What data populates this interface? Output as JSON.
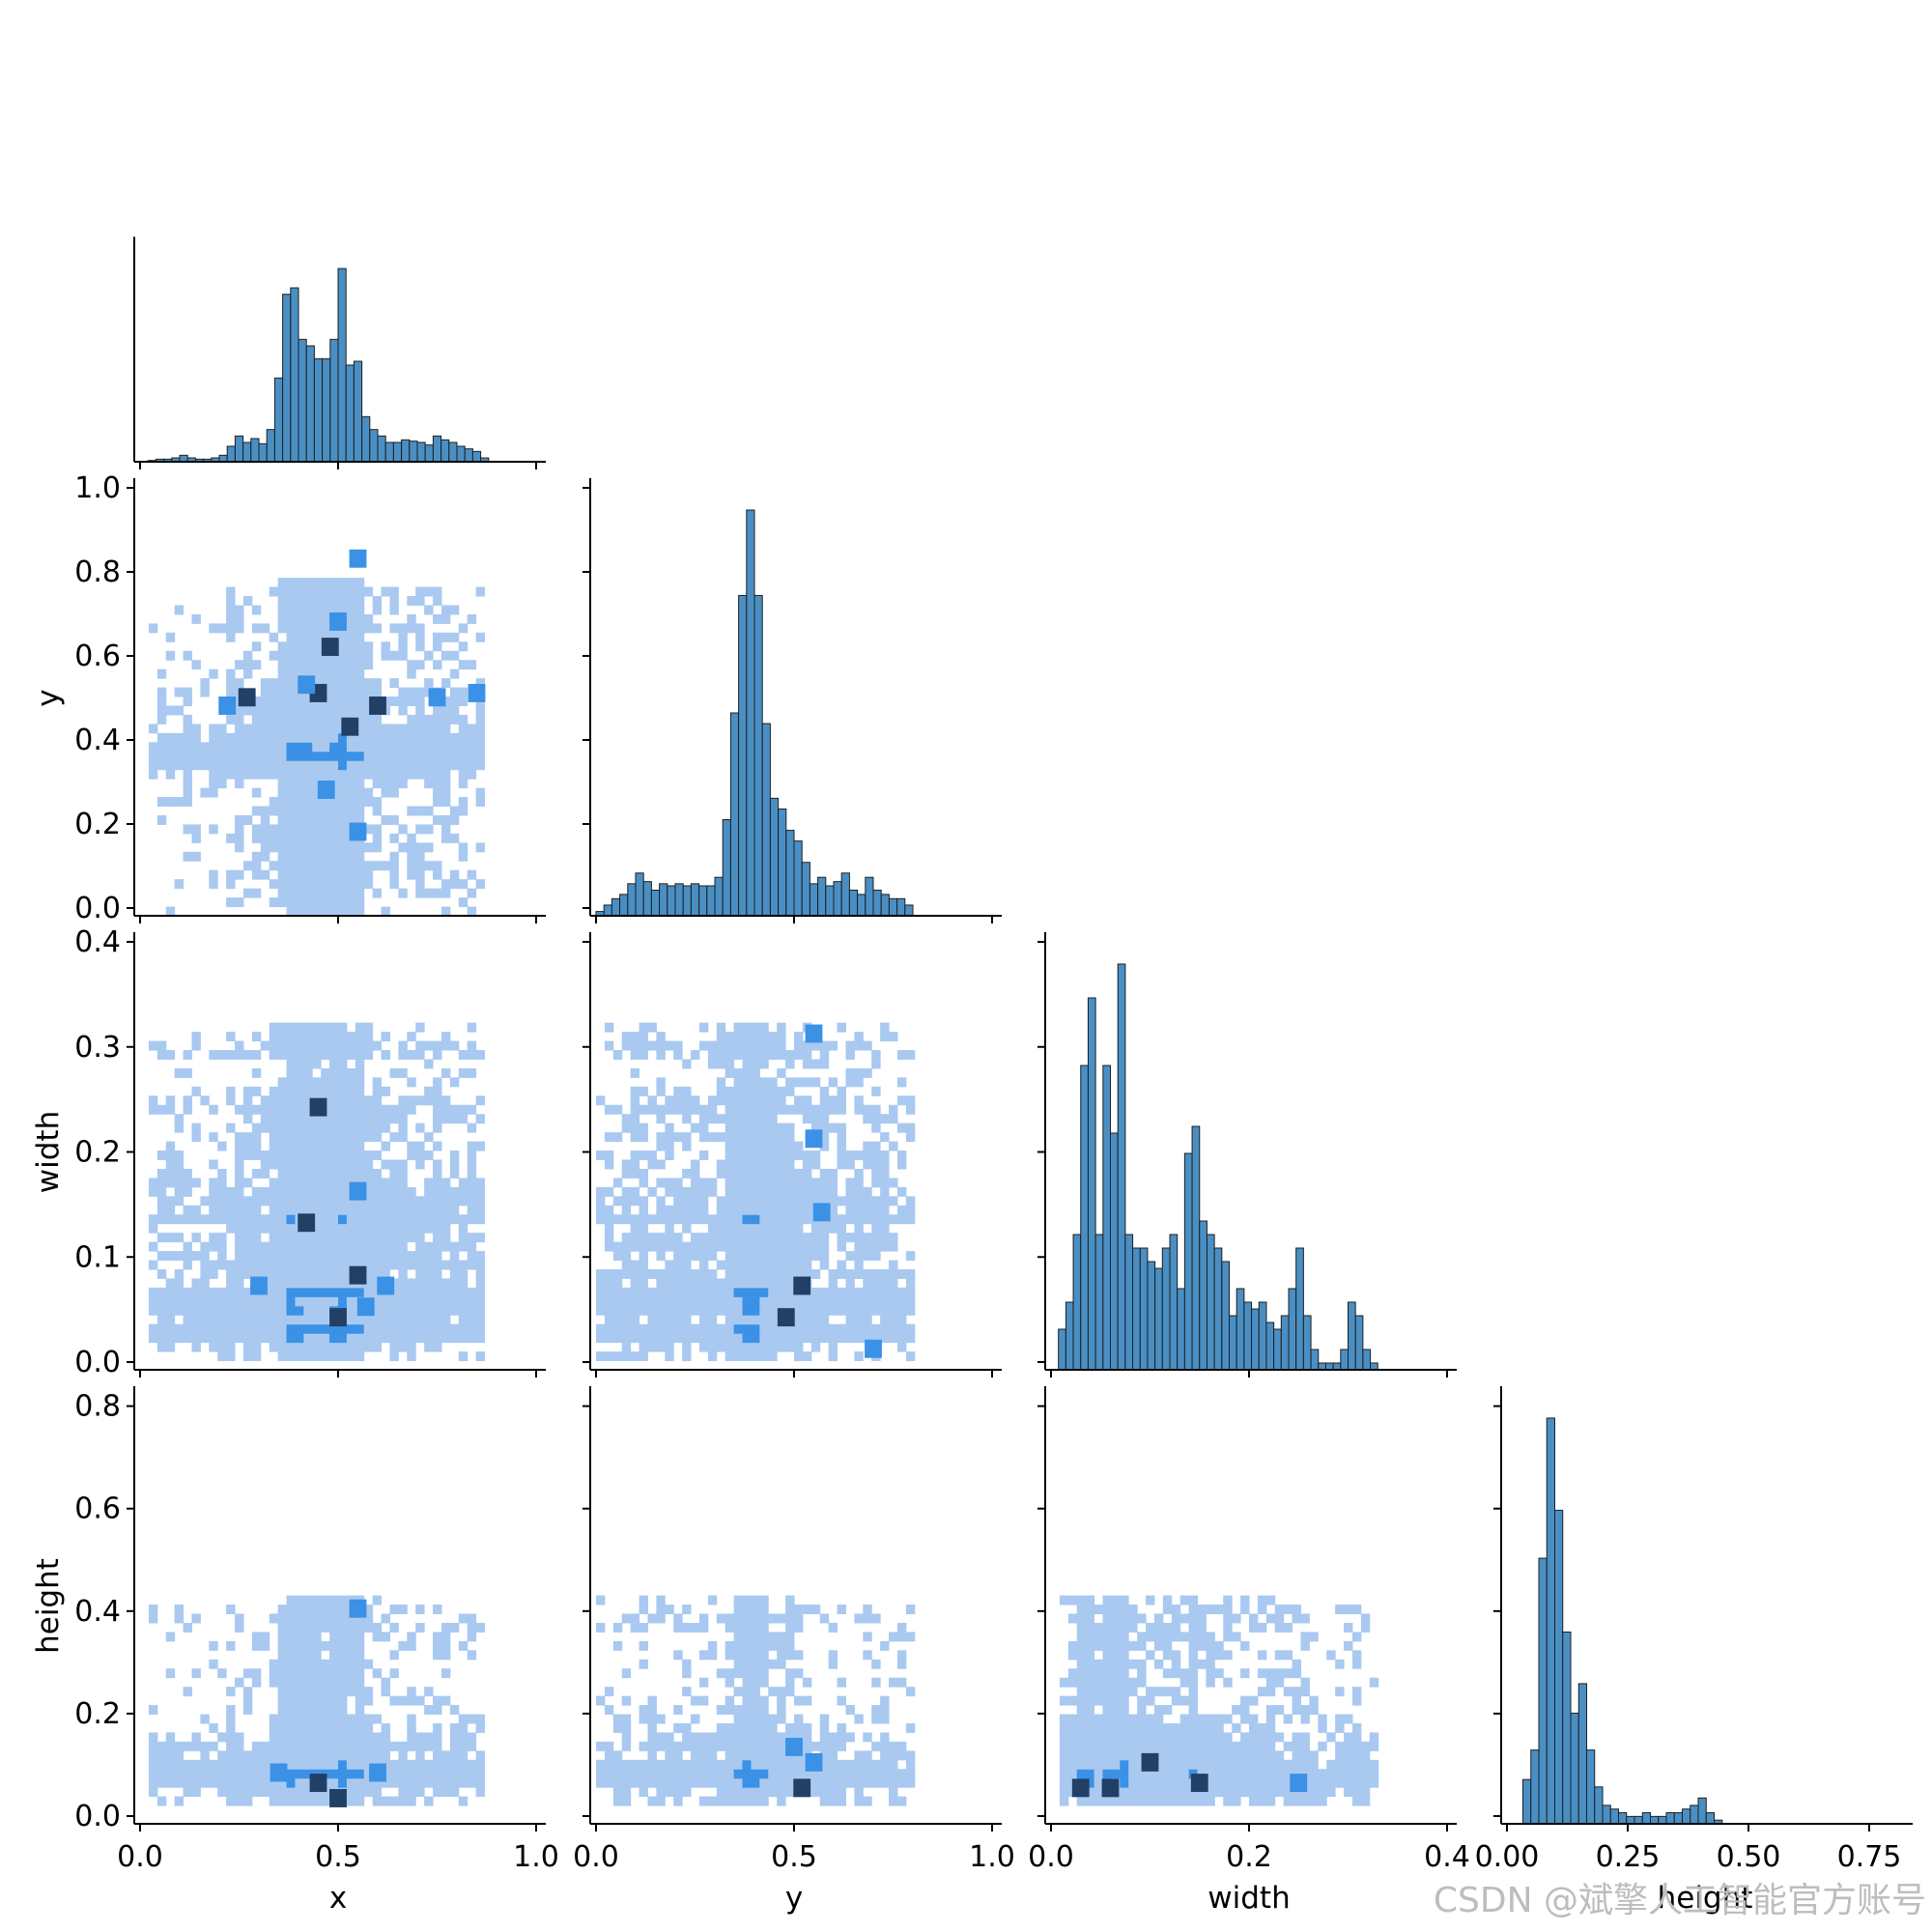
{
  "figure": {
    "watermark": "CSDN @斌擎人工智能官方账号"
  },
  "colors": {
    "bar_fill": "#4a8fc4",
    "bar_edge": "#1f1f1f",
    "heat_light": "#a9c9f0",
    "heat_mid": "#3a91e6",
    "heat_dark": "#223f66",
    "axis": "#000000"
  },
  "chart_data": {
    "type": "pairplot",
    "variables": [
      "x",
      "y",
      "width",
      "height"
    ],
    "diag_kind": "hist",
    "offdiag_kind": "hist2d",
    "corner": true,
    "axes": {
      "x": {
        "label": "x",
        "range": [
          0.0,
          1.0
        ],
        "ticks": [
          0.0,
          0.5,
          1.0
        ],
        "tick_labels": [
          "0.0",
          "0.5",
          "1.0"
        ],
        "y_ticks": [],
        "y_tick_labels": []
      },
      "y": {
        "label": "y",
        "range": [
          0.0,
          1.0
        ],
        "ticks": [
          0.0,
          0.5,
          1.0
        ],
        "tick_labels": [
          "0.0",
          "0.5",
          "1.0"
        ],
        "y_ticks": [
          0.0,
          0.2,
          0.4,
          0.6,
          0.8,
          1.0
        ],
        "y_tick_labels": [
          "0.0",
          "0.2",
          "0.4",
          "0.6",
          "0.8",
          "1.0"
        ]
      },
      "width": {
        "label": "width",
        "range": [
          0.0,
          0.4
        ],
        "ticks": [
          0.0,
          0.2,
          0.4
        ],
        "tick_labels": [
          "0.0",
          "0.2",
          "0.4"
        ],
        "y_ticks": [
          0.0,
          0.1,
          0.2,
          0.3,
          0.4
        ],
        "y_tick_labels": [
          "0.0",
          "0.1",
          "0.2",
          "0.3",
          "0.4"
        ]
      },
      "height": {
        "label": "height",
        "range": [
          0.0,
          0.82
        ],
        "ticks": [
          0.0,
          0.25,
          0.5,
          0.75
        ],
        "tick_labels": [
          "0.00",
          "0.25",
          "0.50",
          "0.75"
        ],
        "y_ticks": [
          0.0,
          0.2,
          0.4,
          0.6,
          0.8
        ],
        "y_tick_labels": [
          "0.0",
          "0.2",
          "0.4",
          "0.6",
          "0.8"
        ]
      }
    },
    "histograms": {
      "x": {
        "bin_start": 0.0,
        "bin_width": 0.02,
        "counts": [
          0,
          1,
          2,
          2,
          3,
          5,
          3,
          2,
          2,
          3,
          5,
          12,
          20,
          15,
          18,
          14,
          25,
          65,
          130,
          135,
          95,
          90,
          80,
          80,
          95,
          150,
          75,
          78,
          35,
          25,
          20,
          15,
          15,
          17,
          16,
          15,
          13,
          20,
          17,
          15,
          12,
          10,
          8,
          3,
          0
        ]
      },
      "y": {
        "bin_start": 0.0,
        "bin_width": 0.02,
        "counts": [
          2,
          5,
          8,
          10,
          15,
          20,
          16,
          12,
          15,
          14,
          15,
          14,
          15,
          14,
          14,
          18,
          45,
          95,
          150,
          190,
          150,
          90,
          55,
          50,
          40,
          35,
          25,
          15,
          18,
          14,
          16,
          20,
          12,
          10,
          18,
          12,
          10,
          8,
          8,
          5,
          0
        ]
      },
      "width": {
        "bin_start": 0.0,
        "bin_width": 0.0075,
        "counts": [
          0,
          6,
          10,
          20,
          45,
          55,
          20,
          45,
          35,
          60,
          20,
          18,
          18,
          16,
          15,
          18,
          20,
          12,
          32,
          36,
          22,
          20,
          18,
          16,
          8,
          12,
          10,
          9,
          10,
          7,
          6,
          8,
          12,
          18,
          8,
          3,
          1,
          1,
          1,
          3,
          10,
          8,
          3,
          1,
          0
        ]
      },
      "height": {
        "bin_start": 0.0,
        "bin_width": 0.0165,
        "counts": [
          0,
          0,
          12,
          20,
          72,
          110,
          85,
          52,
          30,
          38,
          20,
          10,
          5,
          4,
          3,
          2,
          2,
          3,
          2,
          2,
          3,
          3,
          4,
          5,
          7,
          3,
          1,
          0
        ]
      }
    },
    "heatmaps": [
      {
        "x": "x",
        "y": "y",
        "cells": [
          [
            0.27,
            0.52,
            3
          ],
          [
            0.22,
            0.5,
            2
          ],
          [
            0.45,
            0.53,
            3
          ],
          [
            0.48,
            0.64,
            3
          ],
          [
            0.53,
            0.45,
            3
          ],
          [
            0.6,
            0.5,
            3
          ],
          [
            0.42,
            0.55,
            2
          ],
          [
            0.5,
            0.7,
            2
          ],
          [
            0.55,
            0.85,
            2
          ],
          [
            0.47,
            0.3,
            2
          ],
          [
            0.55,
            0.2,
            2
          ],
          [
            0.75,
            0.52,
            2
          ],
          [
            0.85,
            0.53,
            2
          ]
        ]
      },
      {
        "x": "x",
        "y": "width",
        "cells": [
          [
            0.42,
            0.14,
            3
          ],
          [
            0.45,
            0.25,
            3
          ],
          [
            0.55,
            0.09,
            3
          ],
          [
            0.5,
            0.05,
            3
          ],
          [
            0.57,
            0.06,
            2
          ],
          [
            0.3,
            0.08,
            2
          ],
          [
            0.55,
            0.17,
            2
          ],
          [
            0.62,
            0.08,
            2
          ]
        ]
      },
      {
        "x": "y",
        "y": "width",
        "cells": [
          [
            0.48,
            0.05,
            3
          ],
          [
            0.52,
            0.08,
            3
          ],
          [
            0.55,
            0.32,
            2
          ],
          [
            0.55,
            0.22,
            2
          ],
          [
            0.57,
            0.15,
            2
          ],
          [
            0.7,
            0.02,
            2
          ]
        ]
      },
      {
        "x": "x",
        "y": "height",
        "cells": [
          [
            0.45,
            0.08,
            3
          ],
          [
            0.5,
            0.05,
            3
          ],
          [
            0.55,
            0.42,
            2
          ],
          [
            0.6,
            0.1,
            2
          ],
          [
            0.35,
            0.1,
            2
          ]
        ]
      },
      {
        "x": "y",
        "y": "height",
        "cells": [
          [
            0.52,
            0.07,
            3
          ],
          [
            0.55,
            0.12,
            2
          ],
          [
            0.5,
            0.15,
            2
          ]
        ]
      },
      {
        "x": "width",
        "y": "height",
        "cells": [
          [
            0.03,
            0.07,
            3
          ],
          [
            0.1,
            0.12,
            3
          ],
          [
            0.15,
            0.08,
            3
          ],
          [
            0.25,
            0.08,
            2
          ],
          [
            0.06,
            0.07,
            3
          ]
        ]
      }
    ]
  }
}
